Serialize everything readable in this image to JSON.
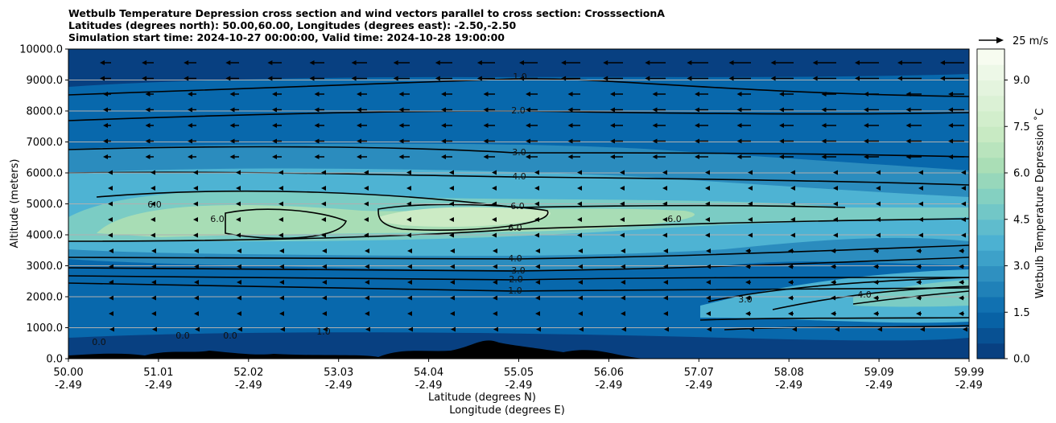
{
  "title": {
    "line1": "Wetbulb Temperature Depression cross section and wind vectors parallel to cross section: CrosssectionA",
    "line2": "Latitudes (degrees north): 50.00,60.00, Longitudes (degrees east): -2.50,-2.50",
    "line3": "Simulation start time: 2024-10-27 00:00:00, Valid time: 2024-10-28 19:00:00"
  },
  "chart_data": {
    "type": "contour",
    "xlabel": "Latitude (degrees N)",
    "xlabel2": "Longitude (degrees E)",
    "ylabel": "Altitude (meters)",
    "ylim": [
      0,
      10000
    ],
    "y_ticks": [
      "0.0",
      "1000.0",
      "2000.0",
      "3000.0",
      "4000.0",
      "5000.0",
      "6000.0",
      "7000.0",
      "8000.0",
      "9000.0",
      "10000.0"
    ],
    "x_ticks": [
      {
        "lat": "50.00",
        "lon": "-2.49"
      },
      {
        "lat": "51.01",
        "lon": "-2.49"
      },
      {
        "lat": "52.02",
        "lon": "-2.49"
      },
      {
        "lat": "53.03",
        "lon": "-2.49"
      },
      {
        "lat": "54.04",
        "lon": "-2.49"
      },
      {
        "lat": "55.05",
        "lon": "-2.49"
      },
      {
        "lat": "56.06",
        "lon": "-2.49"
      },
      {
        "lat": "57.07",
        "lon": "-2.49"
      },
      {
        "lat": "58.08",
        "lon": "-2.49"
      },
      {
        "lat": "59.09",
        "lon": "-2.49"
      },
      {
        "lat": "59.99",
        "lon": "-2.49"
      }
    ],
    "grid": "horizontal",
    "colorbar": {
      "label": "Wetbulb Temperature Depression ˚C",
      "ticks": [
        "0.0",
        "1.5",
        "3.0",
        "4.5",
        "6.0",
        "7.5",
        "9.0"
      ],
      "range": [
        0,
        10
      ],
      "colormap": "GnBu_r",
      "colors": [
        "#084081",
        "#0868ac",
        "#2b8cbe",
        "#4eb3d3",
        "#7bccc4",
        "#a8ddb5",
        "#ccebc5",
        "#e0f3db",
        "#f7fcf0"
      ]
    },
    "quiver_key": {
      "label": "25 m/s",
      "value": 25
    },
    "contour_levels": [
      "0.0",
      "1.0",
      "2.0",
      "3.0",
      "4.0",
      "6.0"
    ]
  }
}
